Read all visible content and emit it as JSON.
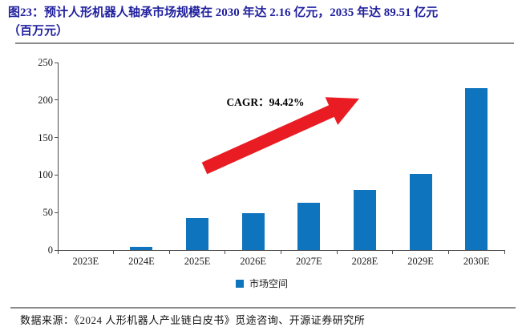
{
  "figure": {
    "title_line1": "图23：预计人形机器人轴承市场规模在 2030 年达 2.16 亿元，2035 年达 89.51 亿元",
    "title_line2": "（百万元）"
  },
  "chart_data": {
    "type": "bar",
    "title": "预计人形机器人轴承市场规模在 2030 年达 2.16 亿元，2035 年达 89.51 亿元（百万元）",
    "categories": [
      "2023E",
      "2024E",
      "2025E",
      "2026E",
      "2027E",
      "2028E",
      "2029E",
      "2030E"
    ],
    "series": [
      {
        "name": "市场空间",
        "values": [
          0,
          4,
          43,
          49,
          63,
          80,
          101,
          216
        ]
      }
    ],
    "xlabel": "",
    "ylabel": "",
    "ylim": [
      0,
      250
    ],
    "yticks": [
      0,
      50,
      100,
      150,
      200,
      250
    ],
    "grid": false,
    "legend_position": "bottom-center",
    "annotation": "CAGR：94.42%"
  },
  "annotation": {
    "cagr": "CAGR：94.42%"
  },
  "legend": {
    "label": "市场空间"
  },
  "footer": {
    "source": "数据来源：《2024 人形机器人产业链白皮书》觅途咨询、开源证券研究所"
  },
  "colors": {
    "title": "#1f1f9e",
    "bar": "#0d74bd",
    "arrow": "#e91c23",
    "axis": "#4d4d4d",
    "rule": "#8a8a8a"
  }
}
